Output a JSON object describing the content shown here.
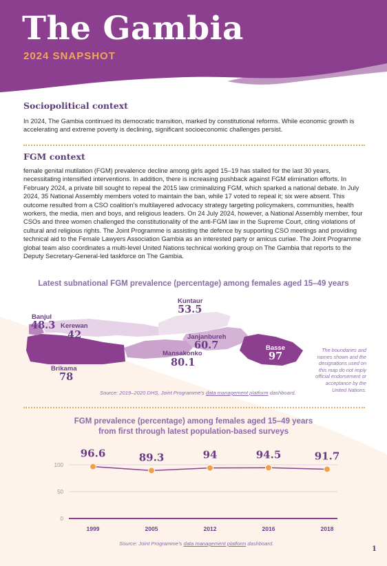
{
  "header": {
    "title": "The Gambia",
    "subtitle": "2024 SNAPSHOT"
  },
  "sociopolitical": {
    "heading": "Sociopolitical context",
    "text": "In 2024, The Gambia continued its democratic transition, marked by constitutional reforms. While economic growth is accelerating and extreme poverty is declining, significant socioeconomic challenges persist."
  },
  "fgm_context": {
    "heading": "FGM context",
    "text": "female genital mutilation (FGM) prevalence decline among girls aged 15–19 has stalled for the last 30 years, necessitating intensified interventions. In addition, there is increasing pushback against FGM elimination efforts. In February 2024, a private bill sought to repeal the 2015 law criminalizing FGM, which sparked a national debate. In July 2024, 35 National Assembly members voted to maintain the ban, while 17 voted to repeal it; six were absent. This outcome resulted from a CSO coalition's multilayered advocacy strategy targeting policymakers, communities, health workers, the media, men and boys, and religious leaders. On 24 July 2024, however, a National Assembly member, four CSOs and three women challenged the constitutionality of the anti-FGM law in the Supreme Court, citing violations of cultural and religious rights. The Joint Programme is assisting the defence by supporting CSO meetings and providing technical aid to the Female Lawyers Association Gambia as an interested party or amicus curiae. The Joint Programme global team also coordinates a multi-level United Nations technical working group on The Gambia that reports to the Deputy Secretary-General-led taskforce on The Gambia."
  },
  "map": {
    "title": "Latest subnational FGM prevalence (percentage) among females aged 15–49 years",
    "regions": [
      {
        "name": "Banjul",
        "value": "48.3"
      },
      {
        "name": "Kerewan",
        "value": "42"
      },
      {
        "name": "Brikama",
        "value": "78"
      },
      {
        "name": "Mansakonko",
        "value": "80.1"
      },
      {
        "name": "Kuntaur",
        "value": "53.5"
      },
      {
        "name": "Janjanbureh",
        "value": "60.7"
      },
      {
        "name": "Basse",
        "value": "97"
      }
    ],
    "disclaimer": "The boundaries and names shown and the designations used on this map do not imply official endorsement or acceptance by the United Nations.",
    "source_prefix": "Source: 2019–2020 DHS, Joint Programme's",
    "source_link": "data management platform",
    "source_suffix": "dashboard.",
    "colors": {
      "dark": "#8b3f8e",
      "mid": "#b985bd",
      "light": "#e6d2e6"
    }
  },
  "chart_data": {
    "type": "line",
    "title": "FGM prevalence (percentage) among females aged 15–49 years from first through latest population-based surveys",
    "x": [
      "1999",
      "2005",
      "2012",
      "2016",
      "2018"
    ],
    "values": [
      96.6,
      89.3,
      94,
      94.5,
      91.7
    ],
    "data_labels": [
      "96.6",
      "89.3",
      "94",
      "94.5",
      "91.7"
    ],
    "yticks": [
      "0",
      "50",
      "100"
    ],
    "ylim": [
      0,
      100
    ],
    "grid": true,
    "line_color": "#8b3f8e",
    "marker_color": "#f0a04b"
  },
  "chart_source": {
    "prefix": "Source: Joint Programme's",
    "link": "data management platform",
    "suffix": "dashboard."
  },
  "page_number": "1"
}
